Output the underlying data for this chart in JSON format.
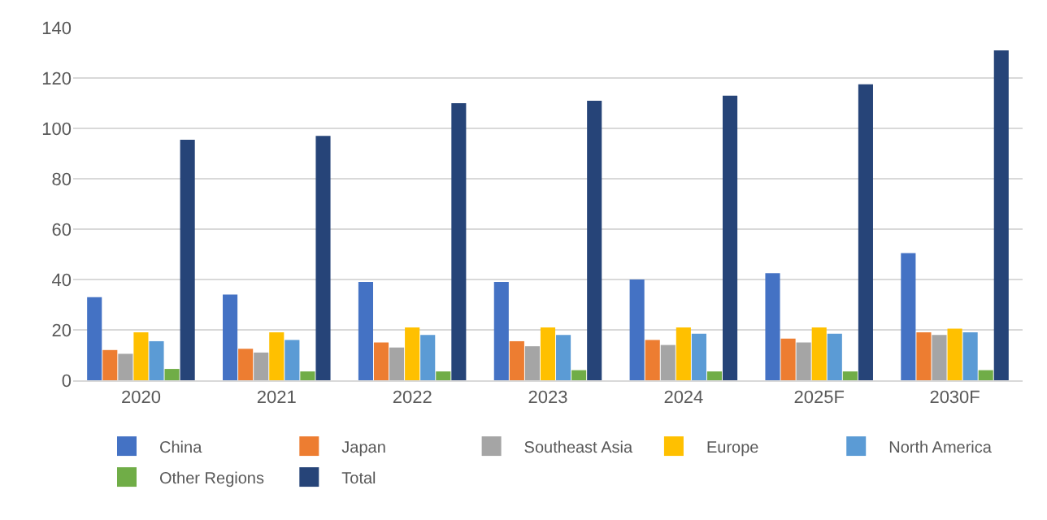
{
  "chart_data": {
    "type": "bar",
    "categories": [
      "2020",
      "2021",
      "2022",
      "2023",
      "2024",
      "2025F",
      "2030F"
    ],
    "series": [
      {
        "name": "China",
        "color": "#4472c4",
        "values": [
          33,
          34,
          39,
          39,
          40,
          42.5,
          50.5
        ]
      },
      {
        "name": "Japan",
        "color": "#ed7d31",
        "values": [
          12,
          12.5,
          15,
          15.5,
          16,
          16.5,
          19
        ]
      },
      {
        "name": "Southeast Asia",
        "color": "#a5a5a5",
        "values": [
          10.5,
          11,
          13,
          13.5,
          14,
          15,
          18
        ]
      },
      {
        "name": "Europe",
        "color": "#ffc000",
        "values": [
          19,
          19,
          21,
          21,
          21,
          21,
          20.5
        ]
      },
      {
        "name": "North America",
        "color": "#5b9bd5",
        "values": [
          15.5,
          16,
          18,
          18,
          18.5,
          18.5,
          19
        ]
      },
      {
        "name": "Other Regions",
        "color": "#70ad47",
        "values": [
          4.5,
          3.5,
          3.5,
          4,
          3.5,
          3.5,
          4
        ]
      },
      {
        "name": "Total",
        "color": "#264478",
        "values": [
          95.5,
          97,
          110,
          111,
          113,
          117.5,
          131
        ]
      }
    ],
    "ylim": [
      0,
      140
    ],
    "yticks": [
      0,
      20,
      40,
      60,
      80,
      100,
      120,
      140
    ],
    "grid": "y",
    "legend": "bottom"
  }
}
